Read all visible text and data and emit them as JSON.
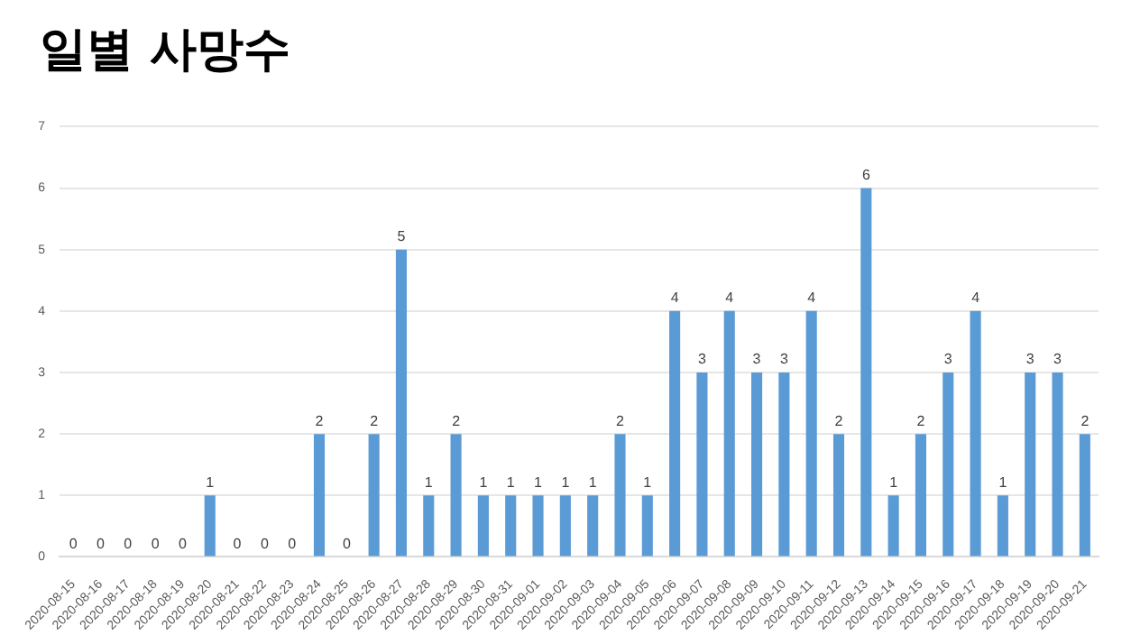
{
  "chart_data": {
    "type": "bar",
    "title": "일별 사망수",
    "categories": [
      "2020-08-15",
      "2020-08-16",
      "2020-08-17",
      "2020-08-18",
      "2020-08-19",
      "2020-08-20",
      "2020-08-21",
      "2020-08-22",
      "2020-08-23",
      "2020-08-24",
      "2020-08-25",
      "2020-08-26",
      "2020-08-27",
      "2020-08-28",
      "2020-08-29",
      "2020-08-30",
      "2020-08-31",
      "2020-09-01",
      "2020-09-02",
      "2020-09-03",
      "2020-09-04",
      "2020-09-05",
      "2020-09-06",
      "2020-09-07",
      "2020-09-08",
      "2020-09-09",
      "2020-09-10",
      "2020-09-11",
      "2020-09-12",
      "2020-09-13",
      "2020-09-14",
      "2020-09-15",
      "2020-09-16",
      "2020-09-17",
      "2020-09-18",
      "2020-09-19",
      "2020-09-20",
      "2020-09-21"
    ],
    "values": [
      0,
      0,
      0,
      0,
      0,
      1,
      0,
      0,
      0,
      2,
      0,
      2,
      5,
      1,
      2,
      1,
      1,
      1,
      1,
      1,
      2,
      1,
      4,
      3,
      4,
      3,
      3,
      4,
      2,
      6,
      1,
      2,
      3,
      4,
      1,
      3,
      3,
      2
    ],
    "color": "#5b9bd5",
    "ylim": [
      0,
      7
    ],
    "yticks": [
      0,
      1,
      2,
      3,
      4,
      5,
      6,
      7
    ],
    "grid": "y",
    "data_labels": true,
    "legend": false
  }
}
